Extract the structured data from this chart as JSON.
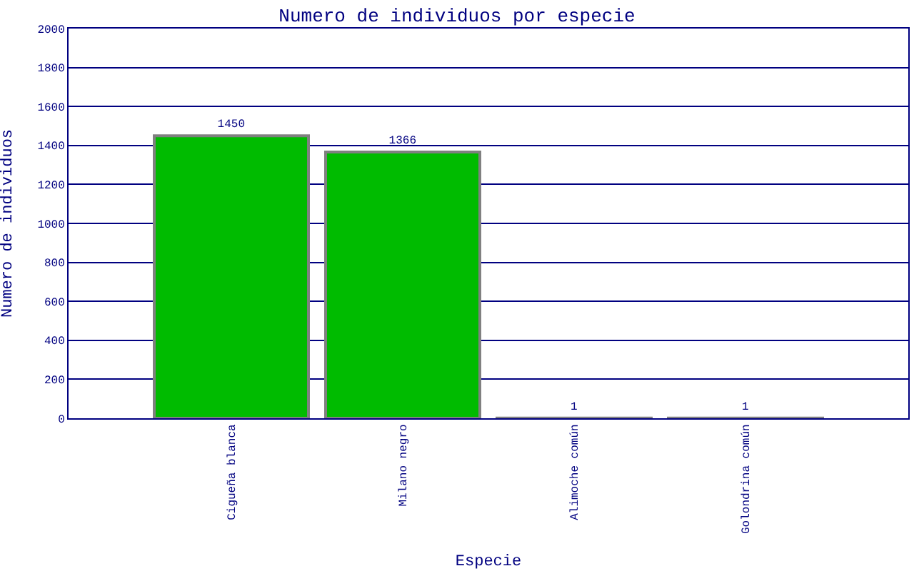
{
  "chart_data": {
    "type": "bar",
    "title": "Numero de individuos por especie",
    "xlabel": "Especie",
    "ylabel": "Numero de individuos",
    "categories": [
      "Cigueña blanca",
      "Milano negro",
      "Alimoche común",
      "Golondrina común"
    ],
    "values": [
      1450,
      1366,
      1,
      1
    ],
    "color": "#00bb00",
    "ylim": [
      0,
      2000
    ],
    "yticks": [
      0,
      200,
      400,
      600,
      800,
      1000,
      1200,
      1400,
      1600,
      1800,
      2000
    ],
    "grid": "y",
    "data_labels": true
  }
}
